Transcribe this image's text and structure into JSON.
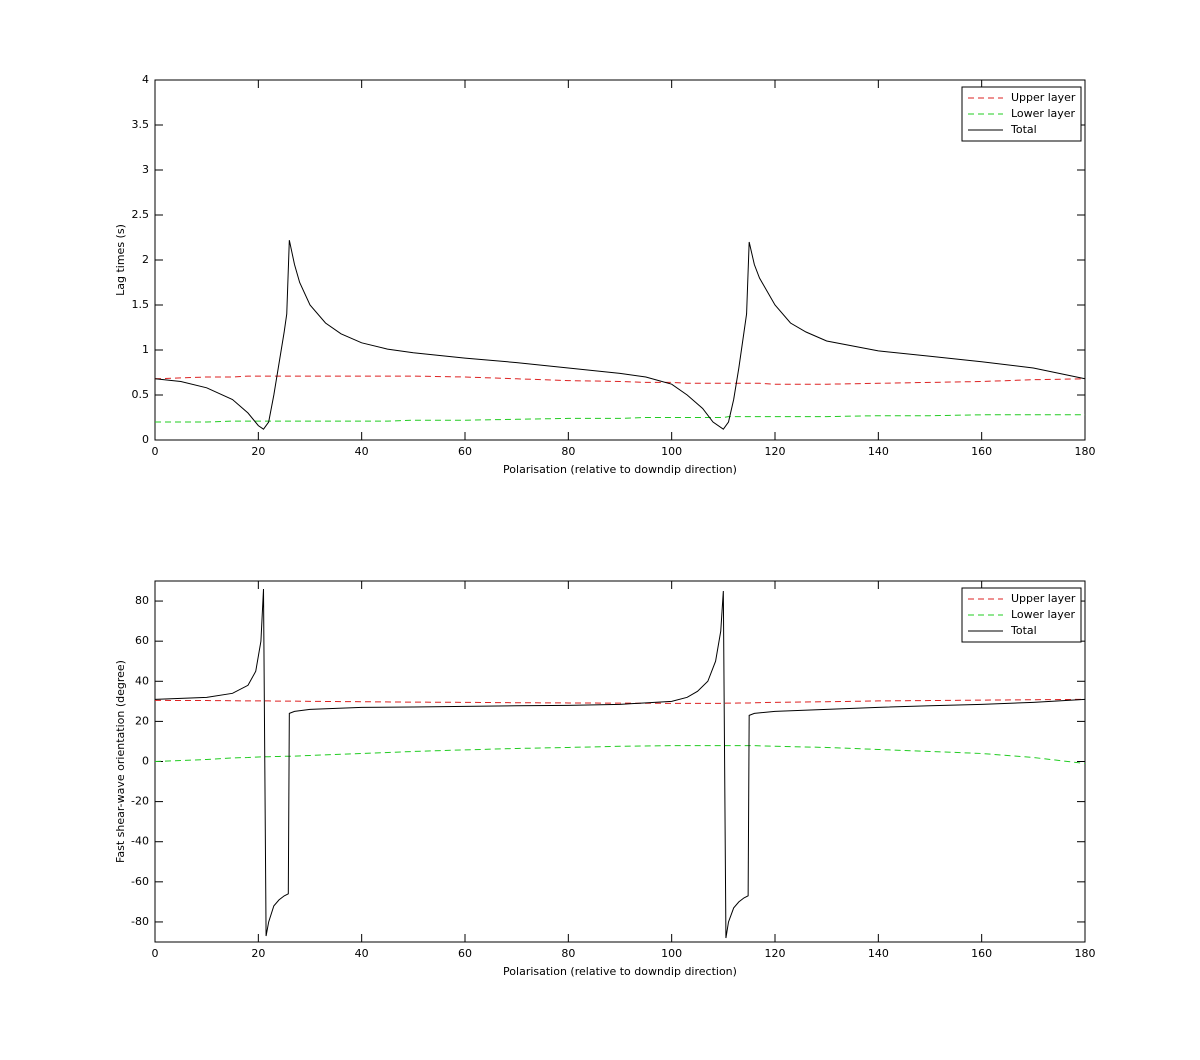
{
  "chart_data": [
    {
      "type": "line",
      "y_label": "Lag times (s)",
      "x_label": "Polarisation (relative to downdip direction)",
      "x": [
        0,
        5,
        10,
        15,
        18,
        20,
        21,
        22,
        23,
        24,
        25,
        25.5,
        26,
        27,
        28,
        30,
        33,
        36,
        40,
        45,
        50,
        60,
        70,
        80,
        90,
        95,
        100,
        103,
        106,
        108,
        110,
        111,
        112,
        113,
        114,
        114.5,
        115,
        116,
        117,
        120,
        123,
        126,
        130,
        140,
        150,
        160,
        170,
        180
      ],
      "series": [
        {
          "name": "Upper layer",
          "color": "#dd2222",
          "style": "dashed",
          "values": [
            0.68,
            0.69,
            0.7,
            0.7,
            0.71,
            0.71,
            0.71,
            0.71,
            0.71,
            0.71,
            0.71,
            0.71,
            0.71,
            0.71,
            0.71,
            0.71,
            0.71,
            0.71,
            0.71,
            0.71,
            0.71,
            0.7,
            0.68,
            0.66,
            0.65,
            0.64,
            0.64,
            0.63,
            0.63,
            0.63,
            0.63,
            0.63,
            0.63,
            0.63,
            0.63,
            0.63,
            0.63,
            0.63,
            0.63,
            0.62,
            0.62,
            0.62,
            0.62,
            0.63,
            0.64,
            0.65,
            0.67,
            0.68
          ]
        },
        {
          "name": "Lower layer",
          "color": "#22cc22",
          "style": "dashed",
          "values": [
            0.2,
            0.2,
            0.2,
            0.21,
            0.21,
            0.21,
            0.21,
            0.21,
            0.21,
            0.21,
            0.21,
            0.21,
            0.21,
            0.21,
            0.21,
            0.21,
            0.21,
            0.21,
            0.21,
            0.21,
            0.22,
            0.22,
            0.23,
            0.24,
            0.24,
            0.25,
            0.25,
            0.25,
            0.25,
            0.25,
            0.25,
            0.26,
            0.26,
            0.26,
            0.26,
            0.26,
            0.26,
            0.26,
            0.26,
            0.26,
            0.26,
            0.26,
            0.26,
            0.27,
            0.27,
            0.28,
            0.28,
            0.28
          ]
        },
        {
          "name": "Total",
          "color": "#000000",
          "style": "solid",
          "values": [
            0.68,
            0.65,
            0.58,
            0.45,
            0.3,
            0.16,
            0.12,
            0.2,
            0.5,
            0.85,
            1.2,
            1.4,
            2.22,
            1.95,
            1.75,
            1.5,
            1.3,
            1.18,
            1.08,
            1.01,
            0.97,
            0.91,
            0.86,
            0.8,
            0.74,
            0.7,
            0.62,
            0.5,
            0.35,
            0.2,
            0.12,
            0.2,
            0.45,
            0.8,
            1.2,
            1.4,
            2.2,
            1.95,
            1.8,
            1.5,
            1.3,
            1.2,
            1.1,
            0.99,
            0.93,
            0.87,
            0.8,
            0.68
          ]
        }
      ],
      "xlim": [
        0,
        180
      ],
      "xticks": [
        0,
        20,
        40,
        60,
        80,
        100,
        120,
        140,
        160,
        180
      ],
      "ylim": [
        0,
        4
      ],
      "yticks": [
        0,
        0.5,
        1,
        1.5,
        2,
        2.5,
        3,
        3.5,
        4
      ],
      "legend": "upper right"
    },
    {
      "type": "line",
      "y_label": "Fast shear-wave orientation (degree)",
      "x_label": "Polarisation (relative to downdip direction)",
      "x": [
        0,
        5,
        10,
        15,
        18,
        19.5,
        20.5,
        21,
        21.5,
        22,
        23,
        24,
        25,
        25.8,
        26,
        27,
        30,
        40,
        50,
        60,
        70,
        80,
        90,
        100,
        103,
        105,
        107,
        108.5,
        109.5,
        110,
        110.5,
        111,
        112,
        113,
        114,
        114.8,
        115,
        116,
        120,
        130,
        140,
        150,
        160,
        170,
        180
      ],
      "series": [
        {
          "name": "Upper layer",
          "color": "#dd2222",
          "style": "dashed",
          "values": [
            30.5,
            30.4,
            30.4,
            30.3,
            30.2,
            30.2,
            30.2,
            30.2,
            30.2,
            30.2,
            30.1,
            30.1,
            30.1,
            30.1,
            30.1,
            30.1,
            30,
            29.8,
            29.6,
            29.5,
            29.3,
            29.2,
            29.1,
            29,
            29,
            29,
            29,
            29,
            29,
            29,
            29.1,
            29.1,
            29.1,
            29.2,
            29.2,
            29.2,
            29.2,
            29.3,
            29.5,
            29.8,
            30.2,
            30.4,
            30.6,
            30.8,
            31
          ]
        },
        {
          "name": "Lower layer",
          "color": "#22cc22",
          "style": "dashed",
          "values": [
            0,
            0.5,
            1,
            1.8,
            2,
            2.2,
            2.3,
            2.3,
            2.4,
            2.4,
            2.5,
            2.5,
            2.6,
            2.6,
            2.6,
            2.7,
            3,
            4,
            5,
            5.8,
            6.5,
            7,
            7.6,
            7.9,
            7.9,
            7.9,
            7.9,
            7.9,
            7.9,
            7.9,
            7.9,
            7.9,
            7.9,
            7.9,
            7.9,
            7.9,
            7.9,
            7.9,
            7.6,
            7,
            6,
            5,
            4,
            2,
            -1
          ]
        },
        {
          "name": "Total",
          "color": "#000000",
          "style": "solid",
          "values": [
            31,
            31.5,
            32,
            34,
            38,
            45,
            60,
            86,
            -87,
            -80,
            -72,
            -69,
            -67,
            -66,
            24,
            25,
            26,
            27,
            27.2,
            27.5,
            27.8,
            28,
            28.5,
            30,
            32,
            35,
            40,
            50,
            65,
            85,
            -88,
            -80,
            -73,
            -70,
            -68,
            -67,
            23,
            24,
            25,
            26,
            27,
            27.8,
            28.5,
            29.5,
            31
          ]
        }
      ],
      "xlim": [
        0,
        180
      ],
      "xticks": [
        0,
        20,
        40,
        60,
        80,
        100,
        120,
        140,
        160,
        180
      ],
      "ylim": [
        -90,
        90
      ],
      "yticks": [
        -80,
        -60,
        -40,
        -20,
        0,
        20,
        40,
        60,
        80
      ],
      "legend": "upper right"
    }
  ]
}
